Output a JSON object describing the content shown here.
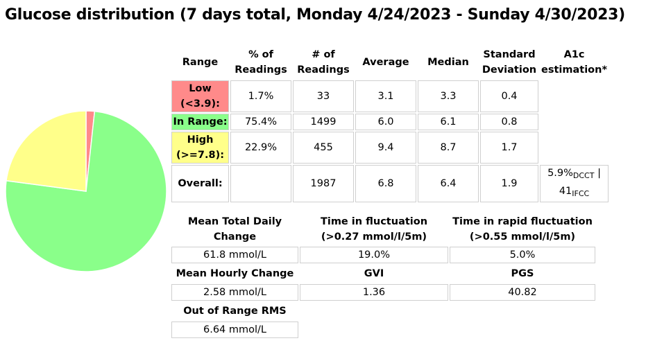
{
  "title": "Glucose distribution (7 days total, Monday 4/24/2023 - Sunday 4/30/2023)",
  "colors": {
    "low": "#ff8a8a",
    "in_range": "#8aff8a",
    "high": "#ffff8a",
    "border": "#cfcfcf"
  },
  "chart_data": {
    "type": "pie",
    "title": "",
    "slices": [
      {
        "name": "Low",
        "value": 1.7,
        "color": "#ff8a8a"
      },
      {
        "name": "In Range",
        "value": 75.4,
        "color": "#8aff8a"
      },
      {
        "name": "High",
        "value": 22.9,
        "color": "#ffff8a"
      }
    ]
  },
  "stats": {
    "headers": {
      "range": "Range",
      "pct_1": "% of",
      "pct_2": "Readings",
      "num_1": "# of",
      "num_2": "Readings",
      "average": "Average",
      "median": "Median",
      "sd_1": "Standard",
      "sd_2": "Deviation",
      "a1c_1": "A1c",
      "a1c_2": "estimation*"
    },
    "rows": [
      {
        "label_1": "Low",
        "label_2": "(<3.9):",
        "pct": "1.7%",
        "count": "33",
        "avg": "3.1",
        "median": "3.3",
        "sd": "0.4"
      },
      {
        "label_1": "In Range:",
        "pct": "75.4%",
        "count": "1499",
        "avg": "6.0",
        "median": "6.1",
        "sd": "0.8"
      },
      {
        "label_1": "High",
        "label_2": "(>=7.8):",
        "pct": "22.9%",
        "count": "455",
        "avg": "9.4",
        "median": "8.7",
        "sd": "1.7"
      },
      {
        "label_1": "Overall:",
        "pct": "",
        "count": "1987",
        "avg": "6.8",
        "median": "6.4",
        "sd": "1.9"
      }
    ],
    "a1c": {
      "dcct_value": "5.9%",
      "dcct_unit": "DCCT",
      "sep": " | ",
      "ifcc_value": "41",
      "ifcc_unit": "IFCC"
    }
  },
  "variability": {
    "mtdc_label_1": "Mean Total Daily",
    "mtdc_label_2": "Change",
    "mtdc_value": "61.8 mmol/L",
    "tif_label_1": "Time in fluctuation",
    "tif_label_2": "(>0.27 mmol/l/5m)",
    "tif_value": "19.0%",
    "tirf_label_1": "Time in rapid fluctuation",
    "tirf_label_2": "(>0.55 mmol/l/5m)",
    "tirf_value": "5.0%",
    "mhc_label": "Mean Hourly Change",
    "mhc_value": "2.58 mmol/L",
    "gvi_label": "GVI",
    "gvi_value": "1.36",
    "pgs_label": "PGS",
    "pgs_value": "40.82",
    "oor_label": "Out of Range RMS",
    "oor_value": "6.64 mmol/L"
  }
}
